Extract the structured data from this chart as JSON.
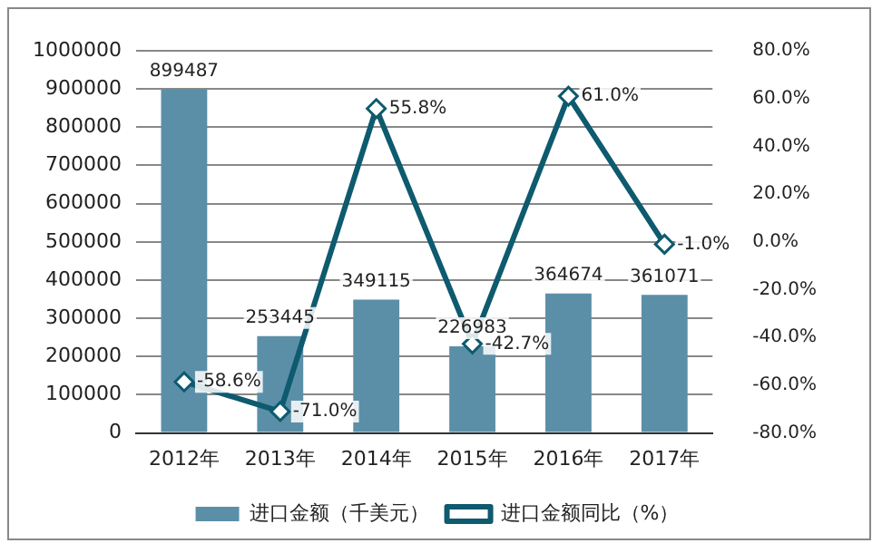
{
  "chart_data": {
    "type": "bar",
    "categories": [
      "2012年",
      "2013年",
      "2014年",
      "2015年",
      "2016年",
      "2017年"
    ],
    "series": [
      {
        "name": "进口金额（千美元）",
        "color": "#5b8fa8",
        "values": [
          899487,
          253445,
          349115,
          226983,
          364674,
          361071
        ]
      },
      {
        "name": "进口金额同比（%）",
        "type": "line",
        "axis": "y2",
        "color": "#0e5a6e",
        "values": [
          -58.6,
          -71.0,
          55.8,
          -42.7,
          61.0,
          -1.0
        ],
        "value_labels": [
          "-58.6%",
          "-71.0%",
          "55.8%",
          "-42.7%",
          "61.0%",
          "-1.0%"
        ]
      }
    ],
    "ylim": [
      0,
      1000000
    ],
    "yticks": [
      0,
      100000,
      200000,
      300000,
      400000,
      500000,
      600000,
      700000,
      800000,
      900000,
      1000000
    ],
    "y2lim": [
      -80,
      80
    ],
    "y2ticks": [
      {
        "value": -80,
        "label": "-80.0%"
      },
      {
        "value": -60,
        "label": "-60.0%"
      },
      {
        "value": -40,
        "label": "-40.0%"
      },
      {
        "value": -20,
        "label": "-20.0%"
      },
      {
        "value": 0,
        "label": "0.0%"
      },
      {
        "value": 20,
        "label": "20.0%"
      },
      {
        "value": 40,
        "label": "40.0%"
      },
      {
        "value": 60,
        "label": "60.0%"
      },
      {
        "value": 80,
        "label": "80.0%"
      }
    ],
    "data_labels": true,
    "grid": "y",
    "legend": "bottom",
    "marker": "diamond"
  }
}
